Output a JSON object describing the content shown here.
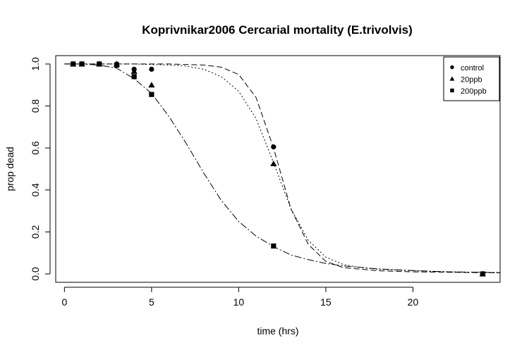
{
  "chart_data": {
    "type": "scatter",
    "title": "Koprivnikar2006 Cercarial mortality (E.trivolvis)",
    "xlabel": "time (hrs)",
    "ylabel": "prop dead",
    "xlim": [
      -0.5,
      25
    ],
    "ylim": [
      -0.04,
      1.04
    ],
    "xticks": [
      0,
      5,
      10,
      15,
      20
    ],
    "yticks": [
      0.0,
      0.2,
      0.4,
      0.6,
      0.8,
      1.0
    ],
    "ytick_labels": [
      "0.0",
      "0.2",
      "0.4",
      "0.6",
      "0.8",
      "1.0"
    ],
    "grid": false,
    "legend_position": "top-right",
    "series": [
      {
        "name": "control",
        "marker": "circle",
        "points": [
          [
            0.5,
            1.0
          ],
          [
            1,
            1.0
          ],
          [
            2,
            1.0
          ],
          [
            3,
            1.0
          ],
          [
            4,
            0.975
          ],
          [
            5,
            0.975
          ],
          [
            12,
            0.605
          ],
          [
            24,
            0.0
          ]
        ],
        "fit": [
          [
            0,
            1.0
          ],
          [
            2,
            1.0
          ],
          [
            4,
            1.0
          ],
          [
            6,
            1.0
          ],
          [
            8,
            0.995
          ],
          [
            9,
            0.985
          ],
          [
            10,
            0.95
          ],
          [
            11,
            0.84
          ],
          [
            12,
            0.6
          ],
          [
            13,
            0.31
          ],
          [
            14,
            0.14
          ],
          [
            15,
            0.06
          ],
          [
            16,
            0.03
          ],
          [
            18,
            0.015
          ],
          [
            20,
            0.01
          ],
          [
            22,
            0.008
          ],
          [
            25,
            0.005
          ]
        ],
        "dash": "8 4"
      },
      {
        "name": "20ppb",
        "marker": "triangle",
        "points": [
          [
            0.5,
            1.0
          ],
          [
            1,
            1.0
          ],
          [
            2,
            1.0
          ],
          [
            3,
            1.0
          ],
          [
            4,
            0.965
          ],
          [
            5,
            0.9
          ],
          [
            12,
            0.525
          ],
          [
            24,
            0.0
          ]
        ],
        "fit": [
          [
            0,
            1.0
          ],
          [
            2,
            1.0
          ],
          [
            4,
            1.0
          ],
          [
            6,
            0.995
          ],
          [
            7,
            0.99
          ],
          [
            8,
            0.975
          ],
          [
            9,
            0.94
          ],
          [
            10,
            0.87
          ],
          [
            11,
            0.74
          ],
          [
            12,
            0.53
          ],
          [
            13,
            0.31
          ],
          [
            14,
            0.16
          ],
          [
            15,
            0.08
          ],
          [
            16,
            0.045
          ],
          [
            17,
            0.03
          ],
          [
            18,
            0.022
          ],
          [
            20,
            0.015
          ],
          [
            22,
            0.01
          ],
          [
            25,
            0.007
          ]
        ],
        "dash": "2 3"
      },
      {
        "name": "200ppb",
        "marker": "square",
        "points": [
          [
            0.5,
            1.0
          ],
          [
            1,
            1.0
          ],
          [
            2,
            1.0
          ],
          [
            3,
            0.995
          ],
          [
            4,
            0.94
          ],
          [
            5,
            0.855
          ],
          [
            12,
            0.133
          ],
          [
            24,
            0.0
          ]
        ],
        "fit": [
          [
            0,
            1.0
          ],
          [
            1,
            1.0
          ],
          [
            2,
            0.995
          ],
          [
            3,
            0.98
          ],
          [
            4,
            0.93
          ],
          [
            5,
            0.86
          ],
          [
            6,
            0.75
          ],
          [
            7,
            0.62
          ],
          [
            8,
            0.48
          ],
          [
            9,
            0.35
          ],
          [
            10,
            0.25
          ],
          [
            11,
            0.18
          ],
          [
            12,
            0.13
          ],
          [
            13,
            0.09
          ],
          [
            14,
            0.068
          ],
          [
            15,
            0.05
          ],
          [
            16,
            0.038
          ],
          [
            18,
            0.024
          ],
          [
            20,
            0.016
          ],
          [
            22,
            0.01
          ],
          [
            25,
            0.006
          ]
        ],
        "dash": "10 3 2 3"
      }
    ]
  }
}
